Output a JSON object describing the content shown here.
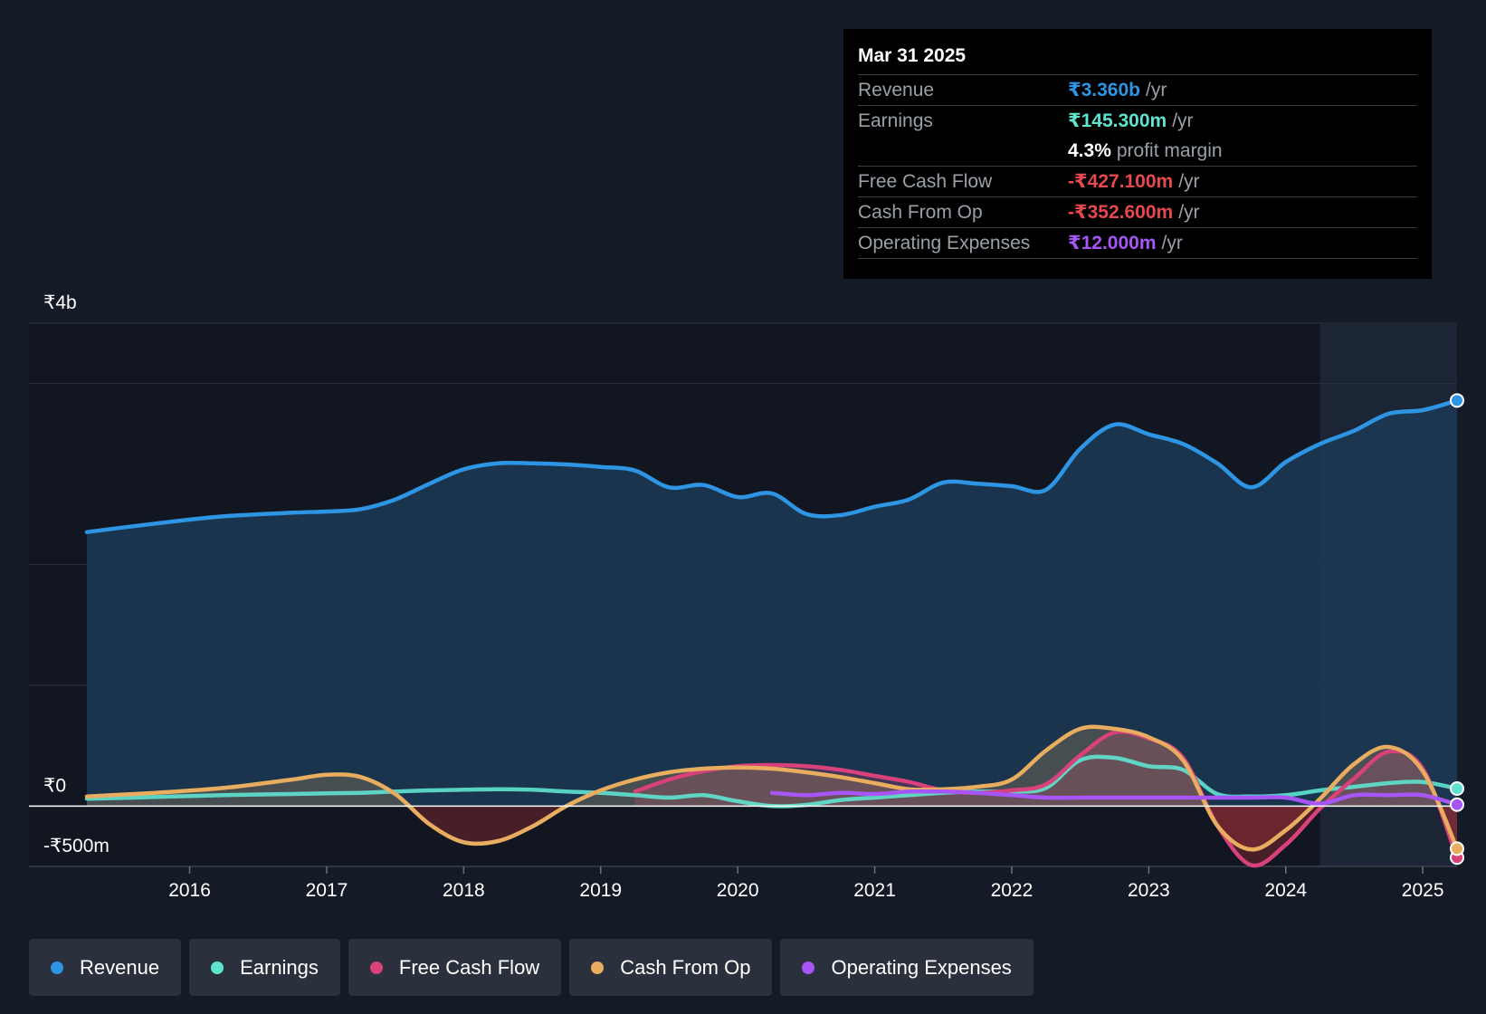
{
  "tooltip": {
    "date": "Mar 31 2025",
    "rows": [
      {
        "label": "Revenue",
        "value": "₹3.360b",
        "unit": "/yr",
        "color": "#2d95e3"
      },
      {
        "label": "Earnings",
        "value": "₹145.300m",
        "unit": "/yr",
        "color": "#5fe3cf"
      },
      {
        "margin_value": "4.3%",
        "margin_text": "profit margin"
      },
      {
        "label": "Free Cash Flow",
        "value": "-₹427.100m",
        "unit": "/yr",
        "color": "#e5484d"
      },
      {
        "label": "Cash From Op",
        "value": "-₹352.600m",
        "unit": "/yr",
        "color": "#e5484d"
      },
      {
        "label": "Operating Expenses",
        "value": "₹12.000m",
        "unit": "/yr",
        "color": "#a855f7"
      }
    ]
  },
  "legend": [
    {
      "label": "Revenue",
      "color": "#2d95e3"
    },
    {
      "label": "Earnings",
      "color": "#5fe3cf"
    },
    {
      "label": "Free Cash Flow",
      "color": "#d9417a"
    },
    {
      "label": "Cash From Op",
      "color": "#e9ad5f"
    },
    {
      "label": "Operating Expenses",
      "color": "#a855f7"
    }
  ],
  "chart_data": {
    "type": "line",
    "title": "",
    "xlabel": "",
    "ylabel": "",
    "ylim": [
      -500,
      4000
    ],
    "xlim": [
      2015.25,
      2025.25
    ],
    "y_tick_labels": [
      {
        "value": 4000,
        "label": "₹4b"
      },
      {
        "value": 0,
        "label": "₹0"
      },
      {
        "value": -500,
        "label": "-₹500m"
      }
    ],
    "gridlines": [
      4000,
      3500,
      2000,
      1000,
      -500
    ],
    "x_ticks": [
      2016,
      2017,
      2018,
      2019,
      2020,
      2021,
      2022,
      2023,
      2024,
      2025
    ],
    "x_tick_labels": [
      "2016",
      "2017",
      "2018",
      "2019",
      "2020",
      "2021",
      "2022",
      "2023",
      "2024",
      "2025"
    ],
    "highlight_start": 2024.25,
    "series": [
      {
        "name": "Revenue",
        "color": "#2d95e3",
        "fill": "#1c3a57",
        "x": [
          2015.25,
          2015.75,
          2016.25,
          2016.75,
          2017.0,
          2017.25,
          2017.5,
          2017.75,
          2018.0,
          2018.25,
          2018.5,
          2018.75,
          2019.0,
          2019.25,
          2019.5,
          2019.75,
          2020.0,
          2020.25,
          2020.5,
          2020.75,
          2021.0,
          2021.25,
          2021.5,
          2021.75,
          2022.0,
          2022.25,
          2022.5,
          2022.75,
          2023.0,
          2023.25,
          2023.5,
          2023.75,
          2024.0,
          2024.25,
          2024.5,
          2024.75,
          2025.0,
          2025.25
        ],
        "y": [
          2270,
          2340,
          2400,
          2430,
          2440,
          2460,
          2540,
          2670,
          2790,
          2840,
          2840,
          2830,
          2810,
          2780,
          2640,
          2660,
          2560,
          2590,
          2420,
          2410,
          2480,
          2540,
          2680,
          2670,
          2650,
          2620,
          2960,
          3160,
          3080,
          3000,
          2840,
          2640,
          2850,
          3000,
          3110,
          3250,
          3280,
          3360
        ]
      },
      {
        "name": "Earnings",
        "color": "#5fe3cf",
        "fill": "none",
        "x": [
          2015.25,
          2015.75,
          2016.25,
          2016.75,
          2017.0,
          2017.25,
          2017.5,
          2017.75,
          2018.0,
          2018.25,
          2018.5,
          2018.75,
          2019.0,
          2019.25,
          2019.5,
          2019.75,
          2020.0,
          2020.25,
          2020.5,
          2020.75,
          2021.0,
          2021.25,
          2021.5,
          2021.75,
          2022.0,
          2022.25,
          2022.5,
          2022.75,
          2023.0,
          2023.25,
          2023.5,
          2023.75,
          2024.0,
          2024.25,
          2024.5,
          2024.75,
          2025.0,
          2025.25
        ],
        "y": [
          60,
          75,
          90,
          100,
          105,
          110,
          120,
          130,
          135,
          140,
          135,
          120,
          110,
          90,
          70,
          90,
          40,
          0,
          10,
          50,
          70,
          90,
          110,
          120,
          120,
          150,
          380,
          400,
          330,
          300,
          100,
          80,
          90,
          130,
          160,
          190,
          200,
          145
        ]
      },
      {
        "name": "Free Cash Flow",
        "color": "#d9417a",
        "fill": "#d9417a",
        "x": [
          2019.25,
          2019.5,
          2019.75,
          2020.0,
          2020.25,
          2020.5,
          2020.75,
          2021.0,
          2021.25,
          2021.5,
          2021.75,
          2022.0,
          2022.25,
          2022.5,
          2022.75,
          2023.0,
          2023.25,
          2023.5,
          2023.75,
          2024.0,
          2024.25,
          2024.5,
          2024.75,
          2025.0,
          2025.25
        ],
        "y": [
          120,
          220,
          290,
          330,
          340,
          330,
          300,
          250,
          200,
          130,
          110,
          130,
          180,
          420,
          610,
          560,
          400,
          -160,
          -490,
          -320,
          -20,
          230,
          450,
          310,
          -427
        ]
      },
      {
        "name": "Cash From Op",
        "color": "#e9ad5f",
        "fill": "#e9ad5f",
        "x": [
          2015.25,
          2015.75,
          2016.25,
          2016.75,
          2017.0,
          2017.25,
          2017.5,
          2017.75,
          2018.0,
          2018.25,
          2018.5,
          2018.75,
          2019.0,
          2019.25,
          2019.5,
          2019.75,
          2020.0,
          2020.25,
          2020.5,
          2020.75,
          2021.0,
          2021.25,
          2021.5,
          2021.75,
          2022.0,
          2022.25,
          2022.5,
          2022.75,
          2023.0,
          2023.25,
          2023.5,
          2023.75,
          2024.0,
          2024.25,
          2024.5,
          2024.75,
          2025.0,
          2025.25
        ],
        "y": [
          80,
          110,
          150,
          220,
          260,
          240,
          100,
          -150,
          -300,
          -290,
          -170,
          0,
          130,
          220,
          280,
          310,
          320,
          310,
          280,
          240,
          190,
          140,
          140,
          160,
          220,
          460,
          640,
          640,
          570,
          380,
          -160,
          -360,
          -200,
          60,
          350,
          490,
          290,
          -353
        ]
      },
      {
        "name": "Operating Expenses",
        "color": "#a855f7",
        "fill": "none",
        "x": [
          2020.25,
          2020.5,
          2020.75,
          2021.0,
          2021.25,
          2021.5,
          2021.75,
          2022.0,
          2022.25,
          2022.5,
          2022.75,
          2023.0,
          2023.25,
          2023.5,
          2023.75,
          2024.0,
          2024.25,
          2024.5,
          2024.75,
          2025.0,
          2025.25
        ],
        "y": [
          110,
          90,
          110,
          100,
          120,
          120,
          110,
          90,
          70,
          70,
          70,
          70,
          70,
          70,
          70,
          70,
          20,
          90,
          90,
          90,
          12
        ]
      }
    ]
  }
}
